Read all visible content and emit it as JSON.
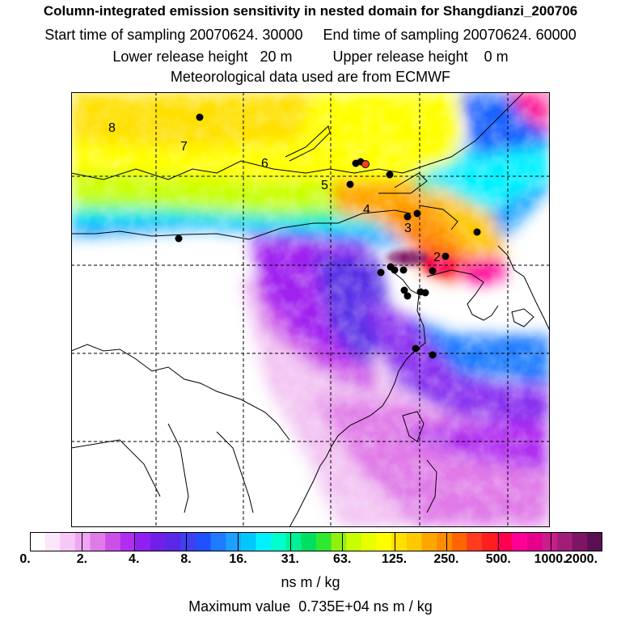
{
  "header": {
    "title": "Column-integrated emission sensitivity in nested domain for Shangdianzi_200706",
    "sampling_line": "Start time of sampling 20070624. 30000     End time of sampling 20070624. 60000",
    "release_line": "Lower release height   20 m          Upper release height    0 m",
    "met_line": "Meteorological data used are from ECMWF"
  },
  "map": {
    "gridlines": "dashed",
    "colors": {
      "white": "#ffffff",
      "pale_pink": "#f6d6f6",
      "light_magenta": "#e08ae8",
      "violet": "#a020f0",
      "blue_violet": "#5a32e6",
      "blue": "#1e64ff",
      "cyan": "#00ffff",
      "green": "#00ff80",
      "yellow_green": "#c8ff00",
      "yellow": "#ffff00",
      "orange": "#ffa500",
      "red": "#ff1e1e",
      "magenta": "#ff0096",
      "dark_purple": "#5a1050"
    },
    "contour_labels": [
      "8",
      "7",
      "6",
      "5",
      "4",
      "3",
      "2"
    ],
    "receptor_marker_color": "#ff3b1e",
    "station_marker_color": "#000000"
  },
  "colorbar": {
    "ticks": [
      "0.",
      "2.",
      "4.",
      "8.",
      "16.",
      "31.",
      "63.",
      "125.",
      "250.",
      "500.",
      "1000.",
      "2000."
    ],
    "units": "ns m / kg",
    "max_value_text": "Maximum value  0.735E+04 ns m / kg",
    "colors": [
      "#ffffff",
      "#fbe6fb",
      "#f6c8f6",
      "#eea6f2",
      "#e07ae8",
      "#cc50e8",
      "#b02ef0",
      "#9020f0",
      "#7020e8",
      "#5a28e6",
      "#4040f0",
      "#2050ff",
      "#1e7bff",
      "#1ea0ff",
      "#00c8ff",
      "#00f0ff",
      "#00ffcc",
      "#00f096",
      "#00e060",
      "#30e830",
      "#90f010",
      "#c8ff00",
      "#e8ff00",
      "#ffff00",
      "#ffe000",
      "#ffc800",
      "#ffa500",
      "#ff8c00",
      "#ff6400",
      "#ff3c1e",
      "#ff1e1e",
      "#ff0050",
      "#ff0096",
      "#e6008c",
      "#c81e8c",
      "#a01e78",
      "#7d1464",
      "#5a1050"
    ]
  }
}
